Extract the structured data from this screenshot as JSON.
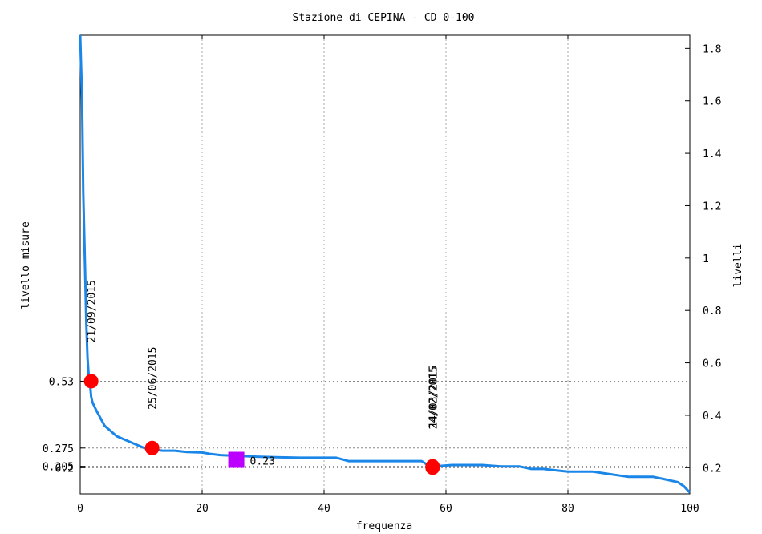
{
  "chart_data": {
    "type": "line",
    "title": "Stazione di CEPINA - CD 0-100",
    "xlabel": "frequenza",
    "ylabel_left": "livello misure",
    "ylabel_right": "livelli",
    "xlim": [
      0,
      100
    ],
    "ylim": [
      0.1,
      1.85
    ],
    "x_ticks": [
      "0",
      "20",
      "40",
      "60",
      "80",
      "100"
    ],
    "x_tick_values": [
      0,
      20,
      40,
      60,
      80,
      100
    ],
    "right_ticks": [
      "0.2",
      "0.4",
      "0.6",
      "0.8",
      "1",
      "1.2",
      "1.4",
      "1.6",
      "1.8"
    ],
    "right_tick_values": [
      0.2,
      0.4,
      0.6,
      0.8,
      1.0,
      1.2,
      1.4,
      1.6,
      1.8
    ],
    "left_ticks": [
      {
        "label": "0.53",
        "value": 0.53
      },
      {
        "label": "0.275",
        "value": 0.275
      },
      {
        "label": "0.205",
        "value": 0.205
      },
      {
        "label": "0.2",
        "value": 0.2
      }
    ],
    "grid": true,
    "line_color": "#1a86e8",
    "marker_color": "#ff0000",
    "median_marker_color": "#bb00ff",
    "series": [
      {
        "x": [
          0,
          0.3,
          0.5,
          0.8,
          1.0,
          1.2,
          1.4,
          1.6,
          1.8,
          2.0,
          2.6,
          3.3,
          4.0,
          5.0,
          6.0,
          7.5,
          9.0,
          10.5,
          11.8,
          13.5,
          15.5,
          17.5,
          20.0,
          21.5,
          23.0,
          26.0,
          29.0,
          32.0,
          36.0,
          40.0,
          42.0,
          43.0,
          44.0,
          50.0,
          56.0,
          57.0,
          58.0,
          61.0,
          63.0,
          66.0,
          69.0,
          72.0,
          74.0,
          76.0,
          78.0,
          80.0,
          84.0,
          87.0,
          90.0,
          94.0,
          96.0,
          97.0,
          98.0,
          99.0,
          100.0
        ],
        "y": [
          1.85,
          1.6,
          1.25,
          0.95,
          0.75,
          0.62,
          0.55,
          0.52,
          0.47,
          0.45,
          0.42,
          0.39,
          0.36,
          0.34,
          0.32,
          0.305,
          0.29,
          0.275,
          0.27,
          0.265,
          0.265,
          0.26,
          0.258,
          0.252,
          0.248,
          0.245,
          0.242,
          0.24,
          0.238,
          0.238,
          0.238,
          0.232,
          0.225,
          0.225,
          0.225,
          0.21,
          0.205,
          0.21,
          0.21,
          0.21,
          0.205,
          0.205,
          0.195,
          0.195,
          0.19,
          0.185,
          0.185,
          0.175,
          0.165,
          0.165,
          0.155,
          0.15,
          0.145,
          0.13,
          0.105
        ]
      }
    ],
    "points": [
      {
        "x": 1.8,
        "y": 0.53,
        "label": "21/09/2015"
      },
      {
        "x": 11.8,
        "y": 0.275,
        "label": "25/06/2015"
      },
      {
        "x": 57.8,
        "y": 0.205,
        "label": "14/03/2015"
      },
      {
        "x": 57.8,
        "y": 0.2,
        "label": "24/02/2015"
      }
    ],
    "median_point": {
      "x": 25.6,
      "y": 0.23,
      "label": "0.23"
    }
  }
}
